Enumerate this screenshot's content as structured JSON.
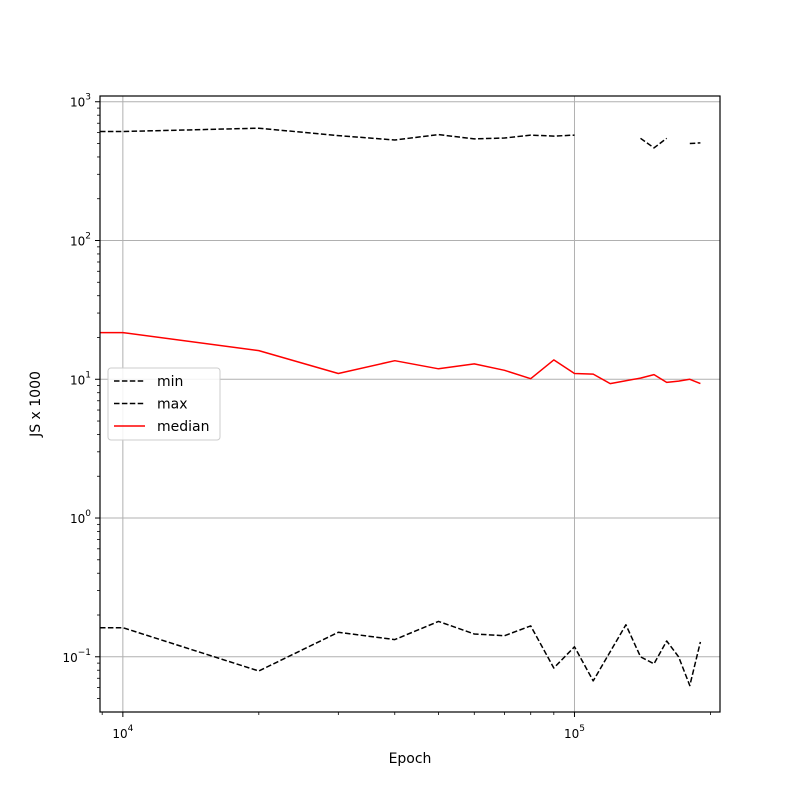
{
  "chart_data": {
    "type": "line",
    "xscale": "log",
    "yscale": "log",
    "xlabel": "Epoch",
    "ylabel": "JS x 1000",
    "xlim": [
      8900,
      210000
    ],
    "ylim": [
      0.04,
      1100
    ],
    "grid": true,
    "legend_position": "center-left",
    "x_ticks": [
      {
        "value": 10000,
        "base": "10",
        "exp": "4"
      },
      {
        "value": 100000,
        "base": "10",
        "exp": "5"
      }
    ],
    "y_ticks": [
      {
        "value": 0.1,
        "base": "10",
        "exp": "−1"
      },
      {
        "value": 1,
        "base": "10",
        "exp": "0"
      },
      {
        "value": 10,
        "base": "10",
        "exp": "1"
      },
      {
        "value": 100,
        "base": "10",
        "exp": "2"
      },
      {
        "value": 1000,
        "base": "10",
        "exp": "3"
      }
    ],
    "series": [
      {
        "name": "min",
        "color": "#000000",
        "style": "dashed",
        "points": [
          [
            8900,
            0.162
          ],
          [
            10000,
            0.162
          ],
          [
            20000,
            0.079
          ],
          [
            30000,
            0.15
          ],
          [
            40000,
            0.133
          ],
          [
            50000,
            0.18
          ],
          [
            60000,
            0.146
          ],
          [
            70000,
            0.142
          ],
          [
            80000,
            0.167
          ],
          [
            90000,
            0.083
          ],
          [
            100000,
            0.118
          ],
          [
            110000,
            0.067
          ],
          [
            130000,
            0.17
          ],
          [
            140000,
            0.1
          ],
          [
            150000,
            0.089
          ],
          [
            160000,
            0.13
          ],
          [
            170000,
            0.1
          ],
          [
            180000,
            0.062
          ],
          [
            190000,
            0.128
          ]
        ]
      },
      {
        "name": "max",
        "color": "#000000",
        "style": "dashed",
        "points": [
          [
            8900,
            610
          ],
          [
            10000,
            610
          ],
          [
            20000,
            645
          ],
          [
            30000,
            570
          ],
          [
            40000,
            530
          ],
          [
            50000,
            580
          ],
          [
            60000,
            540
          ],
          [
            70000,
            548
          ],
          [
            80000,
            575
          ],
          [
            90000,
            565
          ],
          [
            100000,
            575
          ],
          [
            140000,
            545
          ],
          [
            150000,
            465
          ],
          [
            160000,
            545
          ],
          [
            180000,
            500
          ],
          [
            190000,
            505
          ]
        ],
        "segments": [
          [
            0,
            10
          ],
          [
            11,
            13
          ],
          [
            14,
            15
          ]
        ]
      },
      {
        "name": "median",
        "color": "#ff0000",
        "style": "solid",
        "points": [
          [
            8900,
            21.7
          ],
          [
            10000,
            21.7
          ],
          [
            20000,
            16.1
          ],
          [
            30000,
            11.0
          ],
          [
            40000,
            13.6
          ],
          [
            50000,
            11.9
          ],
          [
            60000,
            12.9
          ],
          [
            70000,
            11.6
          ],
          [
            80000,
            10.1
          ],
          [
            90000,
            13.8
          ],
          [
            100000,
            11.0
          ],
          [
            110000,
            10.9
          ],
          [
            120000,
            9.3
          ],
          [
            140000,
            10.2
          ],
          [
            150000,
            10.8
          ],
          [
            160000,
            9.5
          ],
          [
            170000,
            9.7
          ],
          [
            180000,
            10.0
          ],
          [
            190000,
            9.3
          ]
        ]
      }
    ]
  }
}
